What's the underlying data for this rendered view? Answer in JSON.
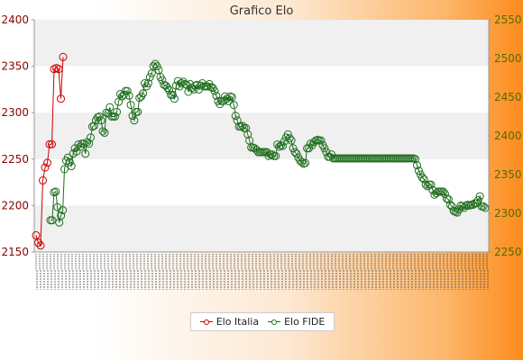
{
  "chart_data": {
    "type": "line",
    "title": "Grafico Elo",
    "left_axis": {
      "ylim": [
        2150,
        2400
      ],
      "ticks": [
        2150,
        2200,
        2250,
        2300,
        2350,
        2400
      ],
      "color": "#8b0000"
    },
    "right_axis": {
      "ylim": [
        2250,
        2550
      ],
      "ticks": [
        2250,
        2300,
        2350,
        2400,
        2450,
        2500,
        2550
      ],
      "color": "#556b00"
    },
    "grid": "horizontal alternating bands",
    "legend_placement": "bottom-center",
    "x_tick_labels_note": "dense illegible rotated date labels",
    "series": [
      {
        "name": "Elo Italia",
        "axis": "left",
        "color": "#cc0000",
        "values": [
          2168,
          2160,
          2157,
          2227,
          2241,
          2246,
          2266,
          2266,
          2347,
          2348,
          2347,
          2315,
          2360
        ]
      },
      {
        "name": "Elo FIDE",
        "axis": "right",
        "color": "#1f6e1f",
        "values": [
          2291,
          2291,
          2327,
          2328,
          2308,
          2288,
          2297,
          2304,
          2357,
          2368,
          2372,
          2366,
          2361,
          2377,
          2384,
          2380,
          2389,
          2386,
          2390,
          2390,
          2377,
          2392,
          2390,
          2398,
          2412,
          2413,
          2420,
          2424,
          2425,
          2420,
          2406,
          2404,
          2430,
          2429,
          2437,
          2425,
          2425,
          2425,
          2431,
          2444,
          2454,
          2451,
          2453,
          2458,
          2458,
          2452,
          2440,
          2426,
          2420,
          2431,
          2431,
          2449,
          2451,
          2455,
          2468,
          2464,
          2468,
          2476,
          2481,
          2490,
          2493,
          2490,
          2485,
          2476,
          2472,
          2466,
          2465,
          2462,
          2459,
          2453,
          2453,
          2448,
          2465,
          2471,
          2464,
          2468,
          2470,
          2467,
          2466,
          2457,
          2467,
          2462,
          2460,
          2465,
          2466,
          2460,
          2465,
          2468,
          2464,
          2464,
          2464,
          2467,
          2463,
          2462,
          2458,
          2452,
          2445,
          2441,
          2445,
          2445,
          2451,
          2448,
          2445,
          2451,
          2450,
          2440,
          2426,
          2420,
          2412,
          2412,
          2413,
          2410,
          2410,
          2402,
          2394,
          2385,
          2385,
          2384,
          2382,
          2379,
          2379,
          2379,
          2379,
          2379,
          2379,
          2374,
          2376,
          2376,
          2374,
          2374,
          2389,
          2386,
          2388,
          2387,
          2393,
          2398,
          2402,
          2397,
          2394,
          2384,
          2379,
          2377,
          2372,
          2368,
          2366,
          2364,
          2365,
          2384,
          2384,
          2390,
          2388,
          2392,
          2394,
          2395,
          2394,
          2394,
          2388,
          2384,
          2379,
          2373,
          2373,
          2376,
          2371,
          2371,
          2371,
          2371,
          2371,
          2371,
          2371,
          2371,
          2371,
          2371,
          2371,
          2371,
          2371,
          2371,
          2371,
          2371,
          2371,
          2371,
          2371,
          2371,
          2371,
          2371,
          2371,
          2371,
          2371,
          2371,
          2371,
          2371,
          2371,
          2371,
          2371,
          2371,
          2371,
          2371,
          2371,
          2371,
          2371,
          2371,
          2371,
          2371,
          2371,
          2371,
          2371,
          2371,
          2371,
          2371,
          2371,
          2370,
          2362,
          2355,
          2350,
          2346,
          2344,
          2337,
          2335,
          2337,
          2337,
          2330,
          2324,
          2326,
          2328,
          2328,
          2328,
          2328,
          2325,
          2319,
          2318,
          2311,
          2309,
          2303,
          2302,
          2301,
          2305,
          2310,
          2309,
          2307,
          2310,
          2311,
          2310,
          2311,
          2311,
          2313,
          2313,
          2317,
          2322,
          2309,
          2309,
          2307
        ]
      }
    ]
  }
}
